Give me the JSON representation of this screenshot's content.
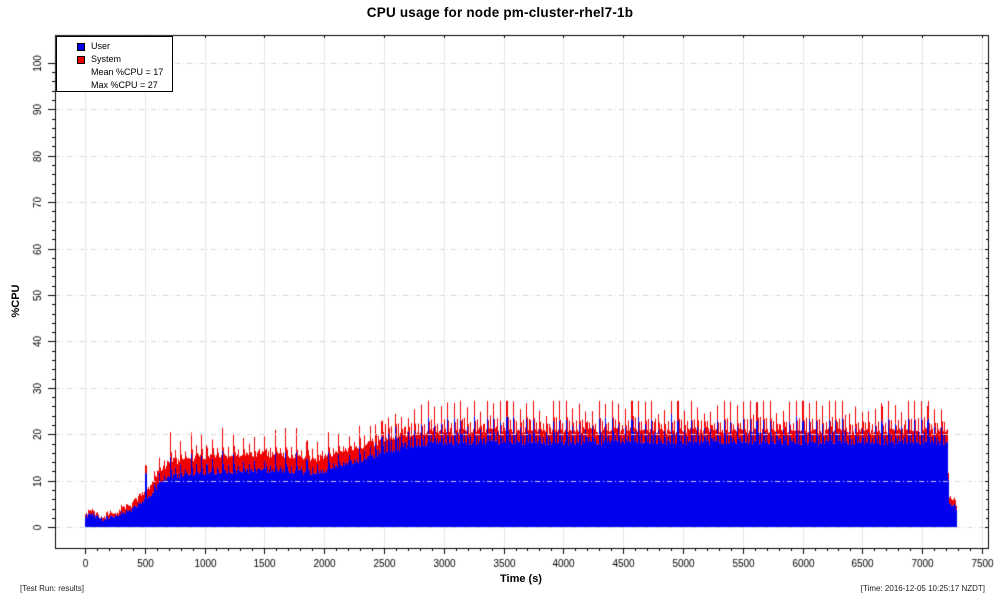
{
  "chart": {
    "title": "CPU usage for node pm-cluster-rhel7-1b",
    "footer_left": "[Test Run: results]",
    "footer_right": "[Time: 2016-12-05 10:25:17 NZDT]"
  },
  "chart_data": {
    "type": "area",
    "stacked": true,
    "title": "CPU usage for node pm-cluster-rhel7-1b",
    "xlabel": "Time (s)",
    "ylabel": "%CPU",
    "xlim": [
      -250,
      7550
    ],
    "ylim": [
      -4.5,
      106
    ],
    "x_ticks": [
      0,
      500,
      1000,
      1500,
      2000,
      2500,
      3000,
      3500,
      4000,
      4500,
      5000,
      5500,
      6000,
      6500,
      7000,
      7500
    ],
    "x_minor_step": 100,
    "y_ticks": [
      0,
      10,
      20,
      30,
      40,
      50,
      60,
      70,
      80,
      90,
      100
    ],
    "y_minor_step": 2,
    "grid": true,
    "t_end": 7290,
    "mean_pct_cpu": 17,
    "max_pct_cpu": 27,
    "legend": {
      "position": "top-left",
      "items": [
        {
          "label": "User",
          "color": "#0000ee"
        },
        {
          "label": "System",
          "color": "#ee0000"
        }
      ],
      "stats": [
        "Mean %CPU = 17",
        "Max %CPU = 27"
      ]
    },
    "series": [
      {
        "name": "User",
        "color": "#0000ee",
        "keyframes": [
          [
            0,
            2.2
          ],
          [
            40,
            3.0
          ],
          [
            90,
            2.5
          ],
          [
            150,
            1.8
          ],
          [
            210,
            2.0
          ],
          [
            270,
            2.6
          ],
          [
            330,
            3.2
          ],
          [
            390,
            3.9
          ],
          [
            450,
            5.0
          ],
          [
            510,
            6.2
          ],
          [
            560,
            7.2
          ],
          [
            600,
            8.8
          ],
          [
            640,
            9.8
          ],
          [
            680,
            10.6
          ],
          [
            720,
            11.0
          ],
          [
            900,
            11.5
          ],
          [
            1200,
            12.0
          ],
          [
            1500,
            12.2
          ],
          [
            1750,
            12.0
          ],
          [
            1900,
            11.5
          ],
          [
            2000,
            12.0
          ],
          [
            2100,
            13.0
          ],
          [
            2200,
            13.8
          ],
          [
            2300,
            14.4
          ],
          [
            2400,
            15.2
          ],
          [
            2500,
            15.9
          ],
          [
            2600,
            16.7
          ],
          [
            2700,
            17.3
          ],
          [
            2800,
            17.8
          ],
          [
            2950,
            18.1
          ],
          [
            3500,
            18.2
          ],
          [
            4500,
            18.2
          ],
          [
            5500,
            18.2
          ],
          [
            6500,
            18.2
          ],
          [
            7200,
            18.2
          ],
          [
            7212,
            13.0
          ],
          [
            7225,
            4.8
          ],
          [
            7280,
            4.6
          ],
          [
            7290,
            0
          ]
        ]
      },
      {
        "name": "System",
        "color": "#ee0000",
        "keyframes": [
          [
            0,
            0.3
          ],
          [
            150,
            0.3
          ],
          [
            270,
            0.5
          ],
          [
            390,
            1.0
          ],
          [
            450,
            1.3
          ],
          [
            510,
            1.6
          ],
          [
            600,
            2.2
          ],
          [
            680,
            2.8
          ],
          [
            720,
            3.0
          ],
          [
            900,
            3.2
          ],
          [
            1500,
            3.3
          ],
          [
            1900,
            2.9
          ],
          [
            2100,
            2.8
          ],
          [
            2400,
            2.6
          ],
          [
            2700,
            2.4
          ],
          [
            2950,
            2.3
          ],
          [
            7200,
            2.3
          ],
          [
            7212,
            1.2
          ],
          [
            7225,
            1.0
          ],
          [
            7280,
            0.9
          ],
          [
            7290,
            0
          ]
        ]
      }
    ],
    "spikes": {
      "start_t": 560,
      "period_early_s": 88,
      "period_late_s": 55,
      "period_change_t": 2400,
      "user_amp_early": [
        1.8,
        4.6
      ],
      "user_amp_late": [
        2.5,
        6.7
      ],
      "system_amp": [
        0.6,
        2.1
      ],
      "isolated_spike": {
        "t": 505,
        "user": 11.6,
        "system": 1.6
      },
      "max_total_early": 21.8,
      "max_total_late": 27.2
    },
    "colors": {
      "user": "#0000ee",
      "system": "#ee0000",
      "frame": "#000000",
      "grid_v": "#e6e6e6",
      "grid_h": "#d6d6d6"
    }
  }
}
